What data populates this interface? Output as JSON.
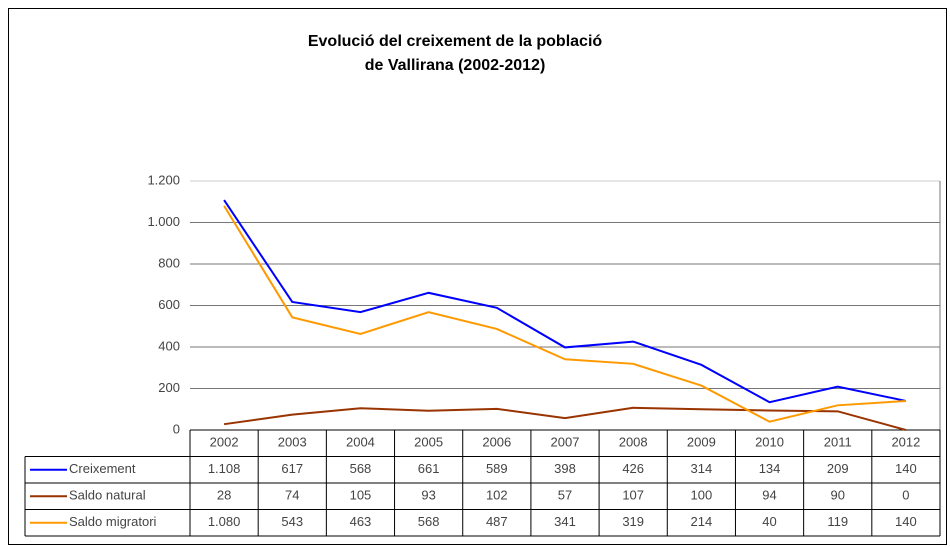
{
  "chart_data": {
    "type": "line",
    "title": [
      "Evolució del creixement de la població",
      "de Vallirana (2002-2012)"
    ],
    "categories": [
      "2002",
      "2003",
      "2004",
      "2005",
      "2006",
      "2007",
      "2008",
      "2009",
      "2010",
      "2011",
      "2012"
    ],
    "series": [
      {
        "name": "Creixement",
        "color": "#0000ff",
        "values": [
          1108,
          617,
          568,
          661,
          589,
          398,
          426,
          314,
          134,
          209,
          140
        ],
        "value_labels": [
          "1.108",
          "617",
          "568",
          "661",
          "589",
          "398",
          "426",
          "314",
          "134",
          "209",
          "140"
        ]
      },
      {
        "name": "Saldo natural",
        "color": "#993300",
        "values": [
          28,
          74,
          105,
          93,
          102,
          57,
          107,
          100,
          94,
          90,
          0
        ]
      },
      {
        "name": "Saldo migratori",
        "color": "#ff9900",
        "values": [
          1080,
          543,
          463,
          568,
          487,
          341,
          319,
          214,
          40,
          119,
          140
        ],
        "value_labels": [
          "1.080",
          "543",
          "463",
          "568",
          "487",
          "341",
          "319",
          "214",
          "40",
          "119",
          "140"
        ]
      }
    ],
    "ylim": [
      0,
      1200
    ],
    "yticks": [
      0,
      200,
      400,
      600,
      800,
      {
        "value": 1000,
        "label": "1.000"
      },
      {
        "value": 1200,
        "label": "1.200"
      }
    ],
    "grid": true
  }
}
